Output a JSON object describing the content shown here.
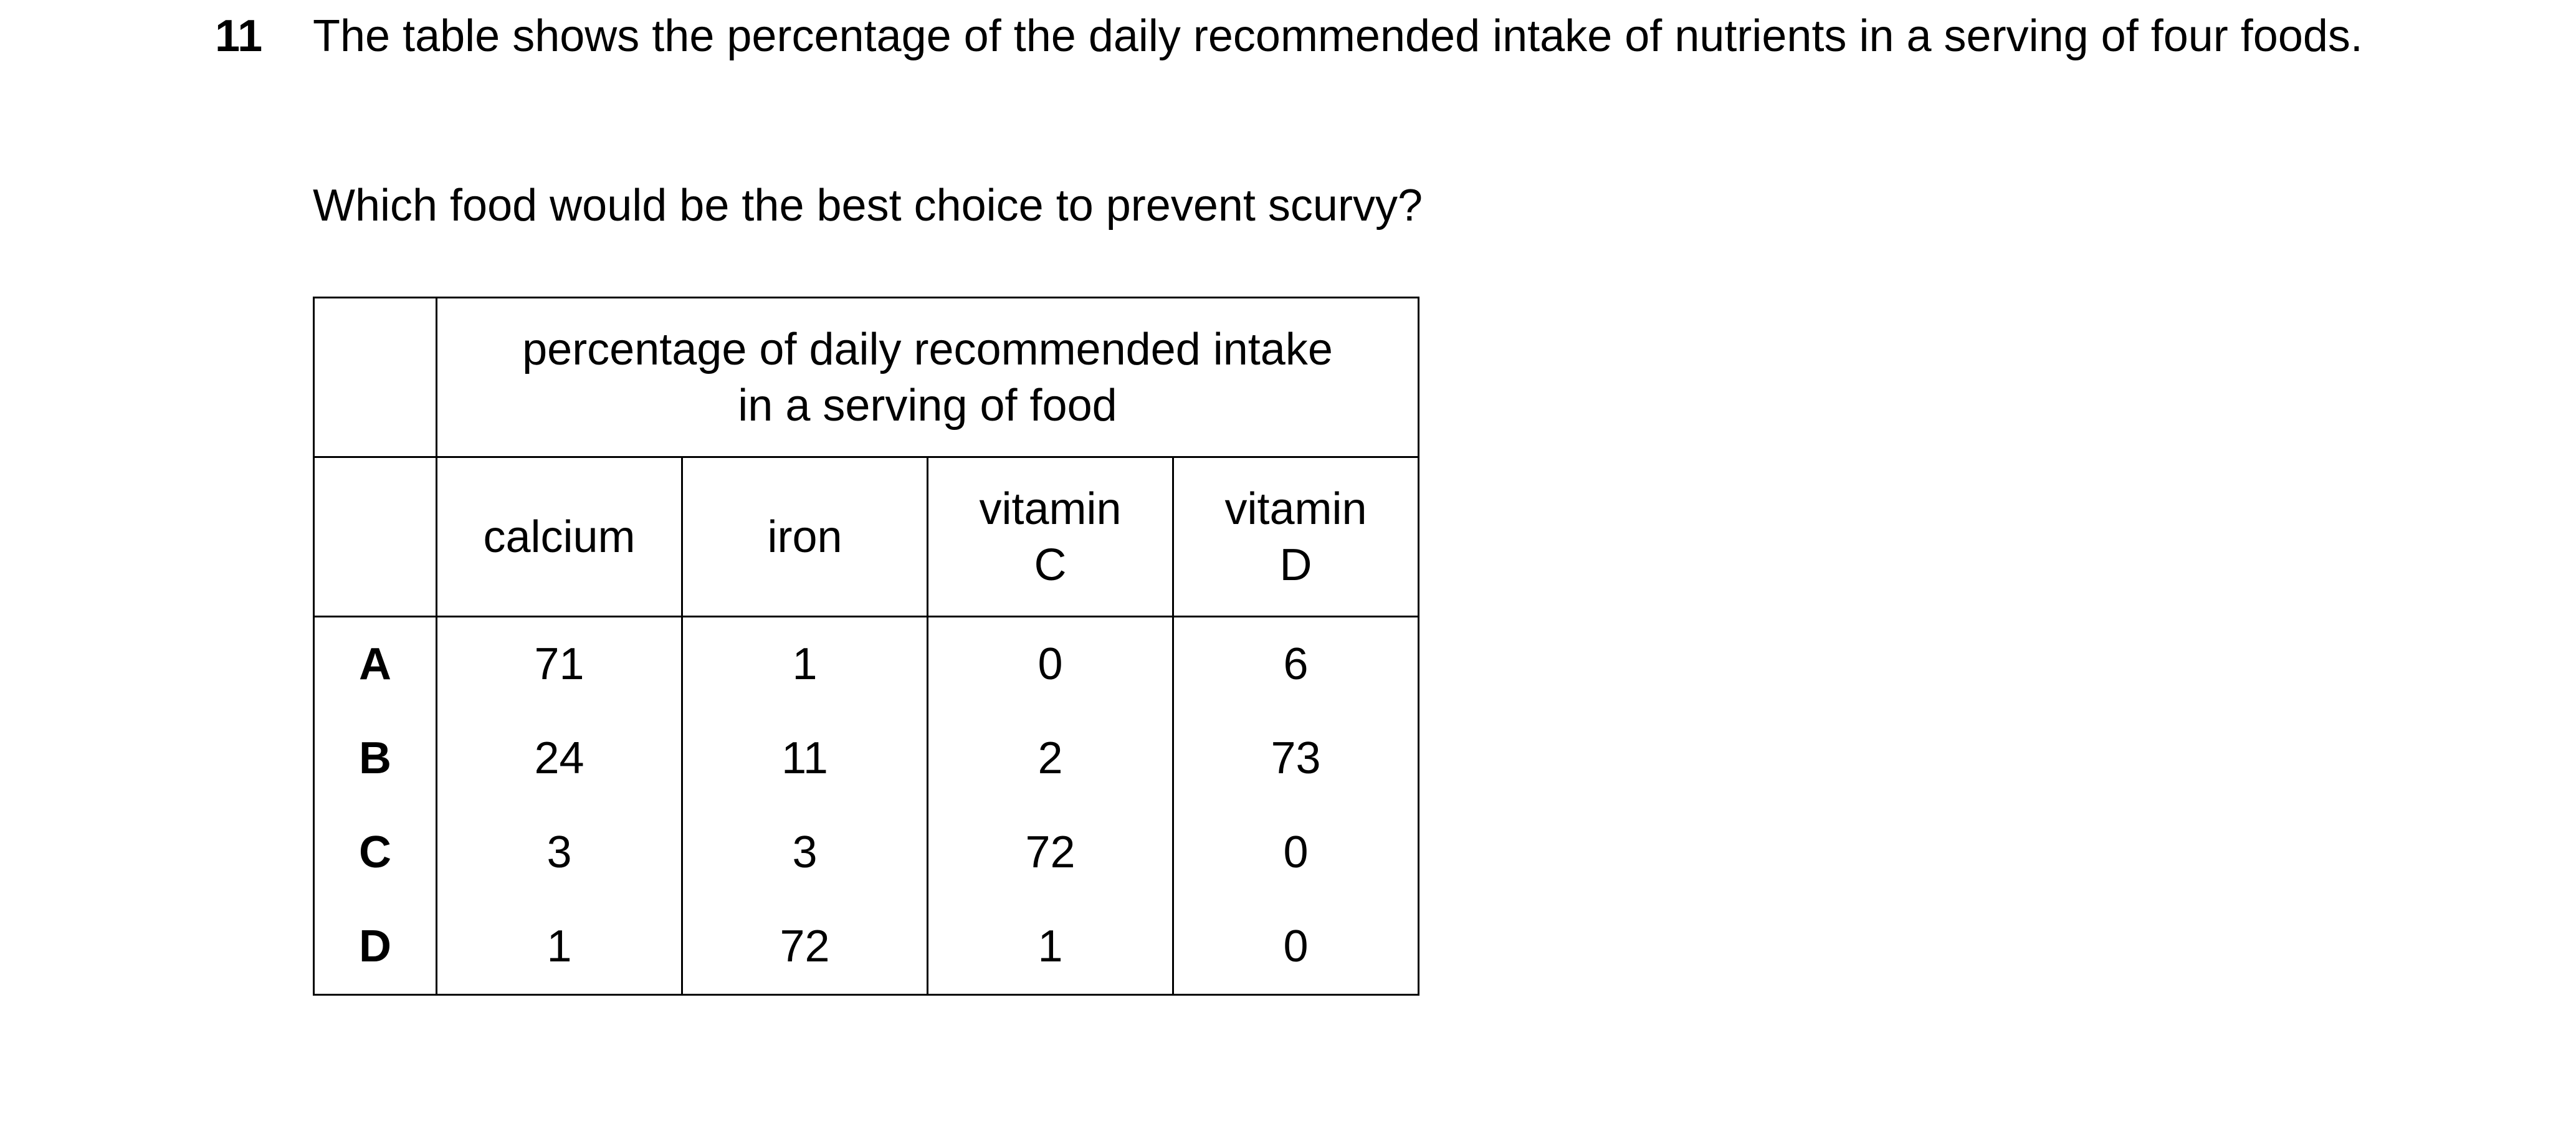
{
  "question": {
    "number": "11",
    "stem": "The table shows the percentage of the daily recommended intake of nutrients in a serving of four foods.",
    "prompt": "Which food would be the best choice to prevent scurvy?"
  },
  "table": {
    "group_header_line1": "percentage of daily recommended intake",
    "group_header_line2": "in a serving of food",
    "columns": [
      {
        "line1": "calcium",
        "line2": ""
      },
      {
        "line1": "iron",
        "line2": ""
      },
      {
        "line1": "vitamin",
        "line2": "C"
      },
      {
        "line1": "vitamin",
        "line2": "D"
      }
    ],
    "rows": [
      {
        "label": "A",
        "values": [
          "71",
          "1",
          "0",
          "6"
        ]
      },
      {
        "label": "B",
        "values": [
          "24",
          "11",
          "2",
          "73"
        ]
      },
      {
        "label": "C",
        "values": [
          "3",
          "3",
          "72",
          "0"
        ]
      },
      {
        "label": "D",
        "values": [
          "1",
          "72",
          "1",
          "0"
        ]
      }
    ]
  }
}
